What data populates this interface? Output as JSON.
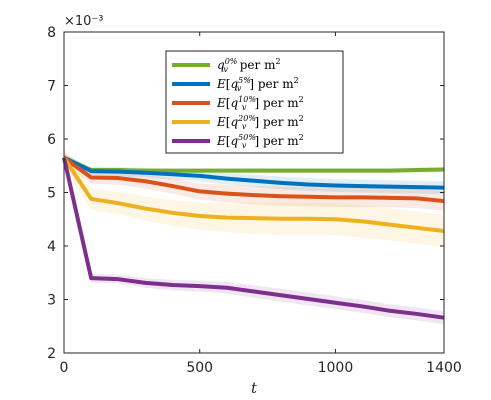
{
  "chart_data": {
    "type": "line",
    "title": "",
    "xlabel": "t",
    "ylabel": "",
    "y_exponent_label": "×10⁻³",
    "xlim": [
      0,
      1400
    ],
    "ylim": [
      2,
      8
    ],
    "x_ticks": [
      0,
      500,
      1000,
      1400
    ],
    "y_ticks": [
      2,
      3,
      4,
      5,
      6,
      7,
      8
    ],
    "grid": false,
    "legend_position": "top-center",
    "x": [
      0,
      100,
      200,
      300,
      400,
      500,
      600,
      700,
      800,
      900,
      1000,
      1100,
      1200,
      1300,
      1400
    ],
    "series": [
      {
        "name": "q_v^{0%} per m^2",
        "color": "#77AC30",
        "values": [
          5.65,
          5.42,
          5.42,
          5.41,
          5.41,
          5.41,
          5.41,
          5.41,
          5.41,
          5.41,
          5.41,
          5.41,
          5.41,
          5.42,
          5.43
        ],
        "band_width": 0.05
      },
      {
        "name": "E[q_v^{5%}] per m^2",
        "color": "#0072BD",
        "values": [
          5.65,
          5.4,
          5.39,
          5.37,
          5.34,
          5.31,
          5.26,
          5.22,
          5.18,
          5.15,
          5.13,
          5.12,
          5.11,
          5.1,
          5.09
        ],
        "band_width": 0.12
      },
      {
        "name": "E[q_v^{10%}] per m^2",
        "color": "#D95319",
        "values": [
          5.65,
          5.28,
          5.27,
          5.21,
          5.12,
          5.02,
          4.98,
          4.95,
          4.93,
          4.92,
          4.91,
          4.91,
          4.9,
          4.89,
          4.84
        ],
        "band_width": 0.18
      },
      {
        "name": "E[q_v^{20%}] per m^2",
        "color": "#EDB120",
        "values": [
          5.65,
          4.88,
          4.8,
          4.7,
          4.62,
          4.56,
          4.53,
          4.52,
          4.51,
          4.51,
          4.5,
          4.46,
          4.4,
          4.34,
          4.28
        ],
        "band_width": 0.3
      },
      {
        "name": "E[q_v^{50%}] per m^2",
        "color": "#7E2F8E",
        "values": [
          5.65,
          3.4,
          3.38,
          3.31,
          3.27,
          3.25,
          3.22,
          3.15,
          3.08,
          3.01,
          2.94,
          2.87,
          2.79,
          2.73,
          2.66
        ],
        "band_width": 0.12
      }
    ]
  },
  "legend_entries": [
    {
      "sym": "q",
      "sup": "0%",
      "rest": " per m",
      "exp": "2",
      "expectation": false
    },
    {
      "sym": "q",
      "sup": "5%",
      "rest": "] per m",
      "exp": "2",
      "expectation": true
    },
    {
      "sym": "q",
      "sup": "10%",
      "rest": "] per m",
      "exp": "2",
      "expectation": true
    },
    {
      "sym": "q",
      "sup": "20%",
      "rest": "] per m",
      "exp": "2",
      "expectation": true
    },
    {
      "sym": "q",
      "sup": "50%",
      "rest": "] per m",
      "exp": "2",
      "expectation": true
    }
  ]
}
